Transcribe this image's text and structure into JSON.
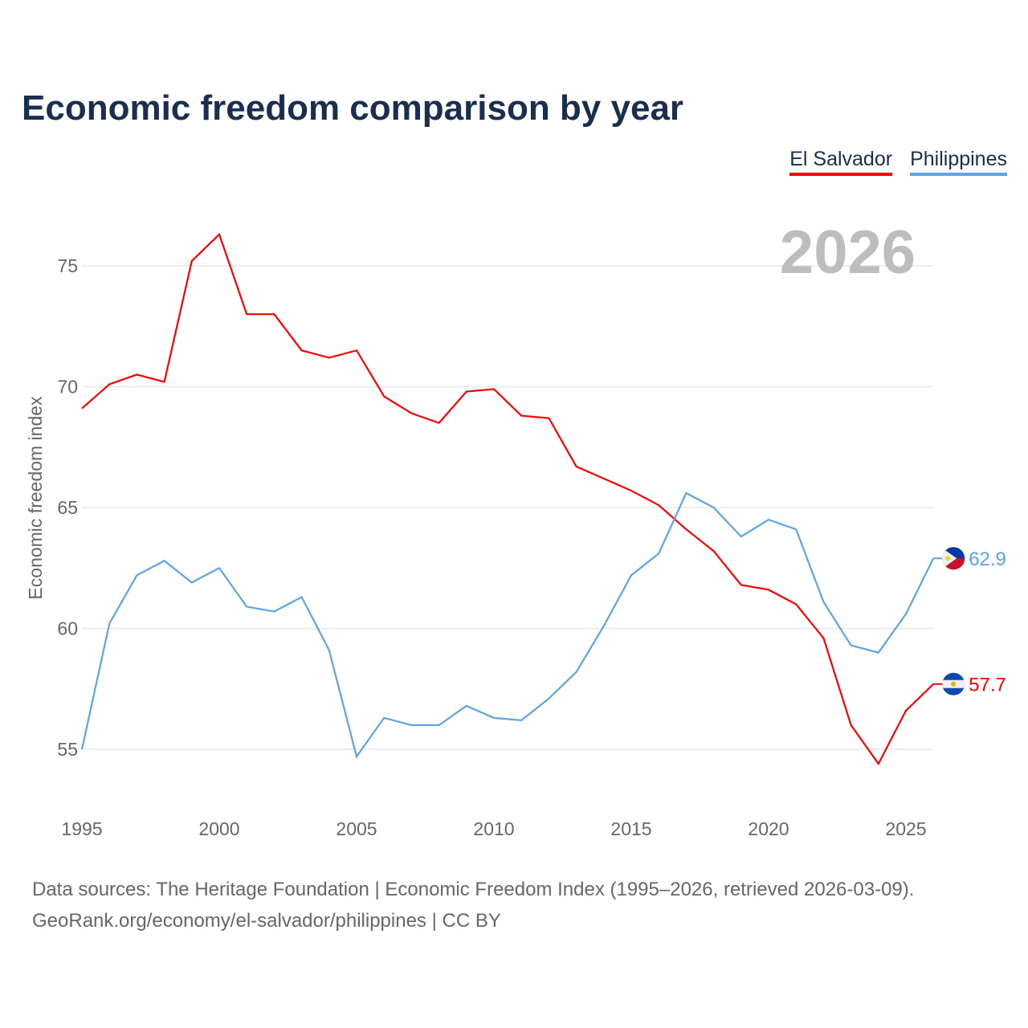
{
  "title": "Economic freedom comparison by year",
  "footer": {
    "line1": "Data sources: The Heritage Foundation | Economic Freedom Index (1995–2026, retrieved 2026-03-09).",
    "line2": "GeoRank.org/economy/el-salvador/philippines | CC BY"
  },
  "chart_data": {
    "type": "line",
    "title": "Economic freedom comparison by year",
    "ylabel": "Economic freedom index",
    "xlabel": "",
    "year_watermark": "2026",
    "ylim": [
      52,
      77.5
    ],
    "xlim": [
      1995,
      2026
    ],
    "yticks": [
      55,
      60,
      65,
      70,
      75
    ],
    "xticks": [
      1995,
      2000,
      2005,
      2010,
      2015,
      2020,
      2025
    ],
    "legend_position": "top-right",
    "x": [
      1995,
      1996,
      1997,
      1998,
      1999,
      2000,
      2001,
      2002,
      2003,
      2004,
      2005,
      2006,
      2007,
      2008,
      2009,
      2010,
      2011,
      2012,
      2013,
      2014,
      2015,
      2016,
      2017,
      2018,
      2019,
      2020,
      2021,
      2022,
      2023,
      2024,
      2025,
      2026
    ],
    "series": [
      {
        "name": "El Salvador",
        "color": "#ff0000",
        "end_label": "57.7",
        "values": [
          69.1,
          70.1,
          70.5,
          70.2,
          75.2,
          76.3,
          73.0,
          73.0,
          71.5,
          71.2,
          71.5,
          69.6,
          68.9,
          68.5,
          69.8,
          69.9,
          68.8,
          68.7,
          66.7,
          66.2,
          65.7,
          65.1,
          64.1,
          63.2,
          61.8,
          61.6,
          61.0,
          59.6,
          56.0,
          54.4,
          56.6,
          57.7
        ]
      },
      {
        "name": "Philippines",
        "color": "#5ba4e8",
        "end_label": "62.9",
        "values": [
          55.0,
          60.2,
          62.2,
          62.8,
          61.9,
          62.5,
          60.9,
          60.7,
          61.3,
          59.1,
          54.7,
          56.3,
          56.0,
          56.0,
          56.8,
          56.3,
          56.2,
          57.1,
          58.2,
          60.1,
          62.2,
          63.1,
          65.6,
          65.0,
          63.8,
          64.5,
          64.1,
          61.1,
          59.3,
          59.0,
          60.6,
          62.9
        ]
      }
    ]
  }
}
